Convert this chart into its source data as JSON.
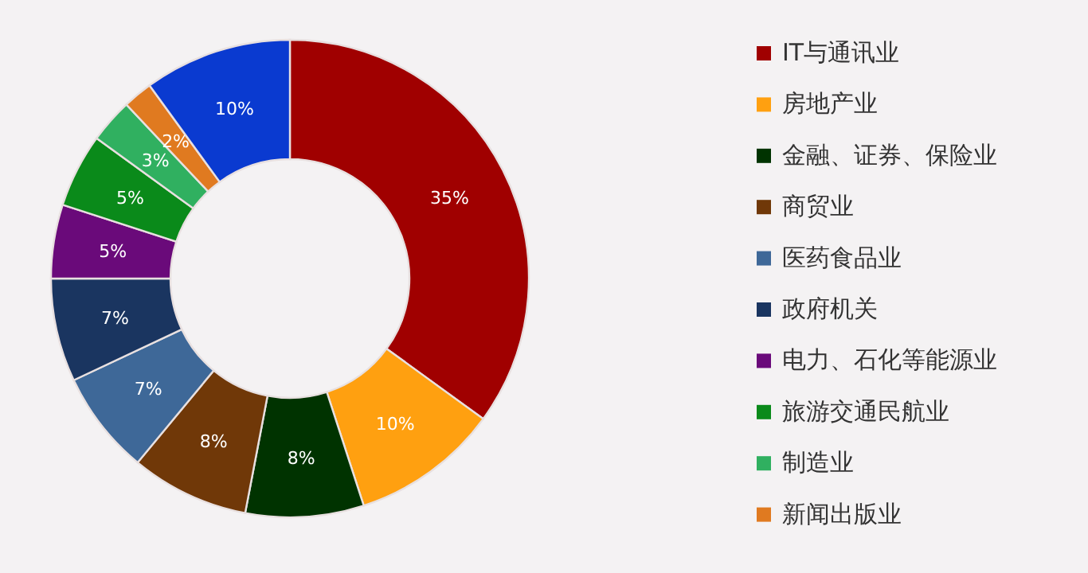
{
  "chart_data": {
    "type": "donut",
    "categories": [
      "IT与通讯业",
      "房地产业",
      "金融、证券、保险业",
      "商贸业",
      "医药食品业",
      "政府机关",
      "电力、石化等能源业",
      "旅游交通民航业",
      "制造业",
      "新闻出版业",
      null
    ],
    "values": [
      35,
      10,
      8,
      8,
      7,
      7,
      5,
      5,
      3,
      2,
      10
    ],
    "colors": [
      "#a00000",
      "#ffa010",
      "#003300",
      "#703808",
      "#3e6898",
      "#1a3560",
      "#6a0a7a",
      "#0a8a1a",
      "#30b060",
      "#e07a20",
      "#0a3ad0"
    ],
    "value_labels": [
      "35%",
      "10%",
      "8%",
      "8%",
      "7%",
      "7%",
      "5%",
      "5%",
      "3%",
      "2%",
      "10%"
    ],
    "legend": "right"
  }
}
